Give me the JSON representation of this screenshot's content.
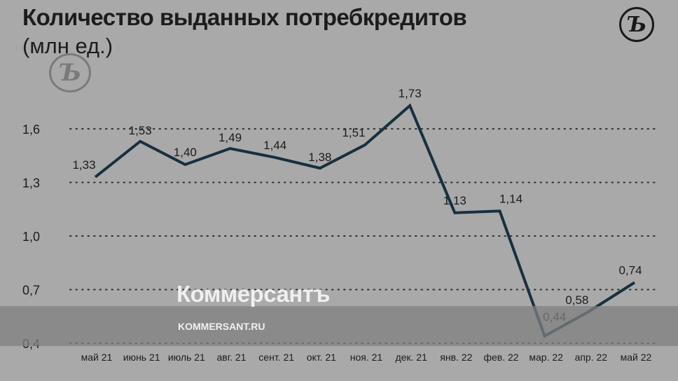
{
  "header": {
    "title": "Количество выданных потребкредитов",
    "subtitle": "(млн ед.)",
    "logo_icon": "kommersant-logo-icon"
  },
  "watermark": {
    "name": "Коммерсантъ",
    "url": "KOMMERSANT.RU"
  },
  "colors": {
    "background": "#a9a9a9",
    "line": "#16303f",
    "text": "#1c1c1c"
  },
  "chart_data": {
    "type": "line",
    "title": "Количество выданных потребкредитов",
    "subtitle": "(млн ед.)",
    "categories": [
      "май 21",
      "июнь 21",
      "июль 21",
      "авг. 21",
      "сент. 21",
      "окт. 21",
      "ноя. 21",
      "дек. 21",
      "янв. 22",
      "фев. 22",
      "мар. 22",
      "апр. 22",
      "май 22"
    ],
    "series": [
      {
        "values": [
          1.33,
          1.53,
          1.4,
          1.49,
          1.44,
          1.38,
          1.51,
          1.73,
          1.13,
          1.14,
          0.44,
          0.58,
          0.74
        ],
        "labels": [
          "1,33",
          "1,53",
          "1,40",
          "1,49",
          "1,44",
          "1,38",
          "1,51",
          "1,73",
          "1,13",
          "1,14",
          "0,44",
          "0,58",
          "0,74"
        ]
      }
    ],
    "yticks": [
      0.4,
      0.7,
      1.0,
      1.3,
      1.6
    ],
    "ytick_labels": [
      "0,4",
      "0,7",
      "1,0",
      "1,3",
      "1,6"
    ],
    "ylim": [
      0.4,
      1.6
    ],
    "grid": "dotted horizontal",
    "legend": "none"
  }
}
